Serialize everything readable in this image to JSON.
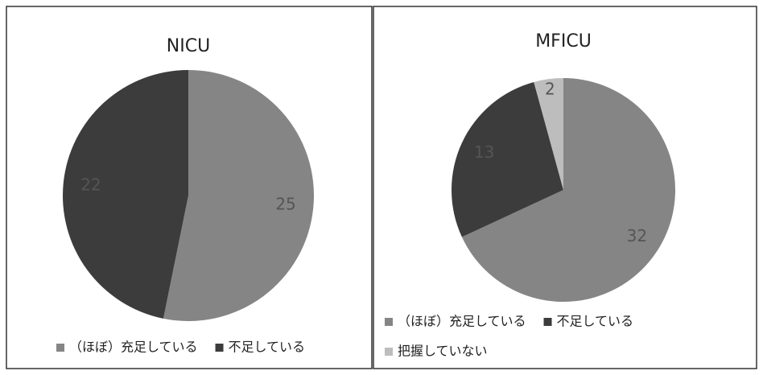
{
  "chart_data": [
    {
      "type": "pie",
      "title": "NICU",
      "categories": [
        "（ほぼ）充足している",
        "不足している"
      ],
      "values": [
        25,
        22
      ],
      "colors": [
        "#858585",
        "#3c3c3c"
      ]
    },
    {
      "type": "pie",
      "title": "MFICU",
      "categories": [
        "（ほぼ）充足している",
        "不足している",
        "把握していない"
      ],
      "values": [
        32,
        13,
        2
      ],
      "colors": [
        "#858585",
        "#3c3c3c",
        "#bdbdbd"
      ]
    }
  ]
}
